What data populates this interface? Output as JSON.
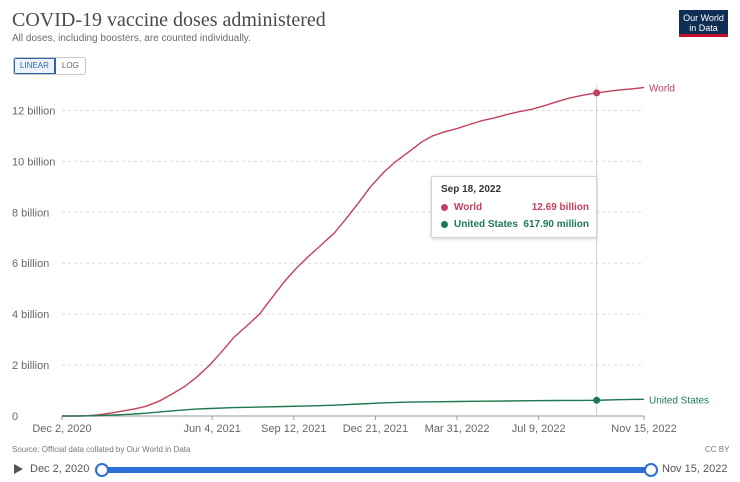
{
  "header": {
    "title": "COVID-19 vaccine doses administered",
    "subtitle": "All doses, including boosters, are counted individually.",
    "logo_line1": "Our World",
    "logo_line2": "in Data"
  },
  "controls": {
    "scale_options": [
      "LINEAR",
      "LOG"
    ],
    "selected": "LINEAR"
  },
  "footer": {
    "source": "Source: Official data collated by Our World in Data",
    "license": "CC BY"
  },
  "timeline": {
    "start_label": "Dec 2, 2020",
    "end_label": "Nov 15, 2022"
  },
  "tooltip": {
    "date": "Sep 18, 2022",
    "rows": [
      {
        "name": "World",
        "value": "12.69 billion",
        "color": "#c4415c"
      },
      {
        "name": "United States",
        "value": "617.90 million",
        "color": "#1e7a4e"
      }
    ]
  },
  "chart_data": {
    "type": "line",
    "x_type": "date",
    "x_range": [
      "2020-12-02",
      "2022-11-15"
    ],
    "y_range": [
      0,
      13000000000
    ],
    "hover_date": "2022-09-18",
    "grid": true,
    "legend": "inline-right",
    "y_ticks": [
      {
        "value": 0,
        "label": "0"
      },
      {
        "value": 2000000000,
        "label": "2 billion"
      },
      {
        "value": 4000000000,
        "label": "4 billion"
      },
      {
        "value": 6000000000,
        "label": "6 billion"
      },
      {
        "value": 8000000000,
        "label": "8 billion"
      },
      {
        "value": 10000000000,
        "label": "10 billion"
      },
      {
        "value": 12000000000,
        "label": "12 billion"
      }
    ],
    "x_ticks": [
      {
        "date": "2020-12-02",
        "label": "Dec 2, 2020"
      },
      {
        "date": "2021-06-04",
        "label": "Jun 4, 2021"
      },
      {
        "date": "2021-09-12",
        "label": "Sep 12, 2021"
      },
      {
        "date": "2021-12-21",
        "label": "Dec 21, 2021"
      },
      {
        "date": "2022-03-31",
        "label": "Mar 31, 2022"
      },
      {
        "date": "2022-07-09",
        "label": "Jul 9, 2022"
      },
      {
        "date": "2022-11-15",
        "label": "Nov 15, 2022"
      }
    ],
    "series": [
      {
        "name": "World",
        "color": "#c4415c",
        "points": [
          [
            "2020-12-02",
            0
          ],
          [
            "2020-12-20",
            1000000
          ],
          [
            "2021-01-01",
            10000000
          ],
          [
            "2021-01-15",
            40000000
          ],
          [
            "2021-02-01",
            120000000
          ],
          [
            "2021-02-15",
            200000000
          ],
          [
            "2021-03-01",
            280000000
          ],
          [
            "2021-03-15",
            380000000
          ],
          [
            "2021-04-01",
            600000000
          ],
          [
            "2021-04-15",
            850000000
          ],
          [
            "2021-05-01",
            1150000000
          ],
          [
            "2021-05-15",
            1500000000
          ],
          [
            "2021-06-01",
            2000000000
          ],
          [
            "2021-06-15",
            2500000000
          ],
          [
            "2021-07-01",
            3100000000
          ],
          [
            "2021-07-15",
            3500000000
          ],
          [
            "2021-08-01",
            4000000000
          ],
          [
            "2021-08-15",
            4600000000
          ],
          [
            "2021-09-01",
            5300000000
          ],
          [
            "2021-09-15",
            5800000000
          ],
          [
            "2021-10-01",
            6300000000
          ],
          [
            "2021-10-15",
            6700000000
          ],
          [
            "2021-11-01",
            7200000000
          ],
          [
            "2021-11-15",
            7750000000
          ],
          [
            "2021-12-01",
            8400000000
          ],
          [
            "2021-12-15",
            9000000000
          ],
          [
            "2022-01-01",
            9600000000
          ],
          [
            "2022-01-15",
            10000000000
          ],
          [
            "2022-02-01",
            10400000000
          ],
          [
            "2022-02-15",
            10750000000
          ],
          [
            "2022-03-01",
            11000000000
          ],
          [
            "2022-03-15",
            11150000000
          ],
          [
            "2022-04-01",
            11300000000
          ],
          [
            "2022-04-15",
            11450000000
          ],
          [
            "2022-05-01",
            11600000000
          ],
          [
            "2022-05-15",
            11700000000
          ],
          [
            "2022-06-01",
            11850000000
          ],
          [
            "2022-06-15",
            11950000000
          ],
          [
            "2022-07-01",
            12050000000
          ],
          [
            "2022-07-15",
            12180000000
          ],
          [
            "2022-08-01",
            12350000000
          ],
          [
            "2022-08-15",
            12480000000
          ],
          [
            "2022-09-01",
            12600000000
          ],
          [
            "2022-09-18",
            12690000000
          ],
          [
            "2022-10-01",
            12750000000
          ],
          [
            "2022-10-15",
            12800000000
          ],
          [
            "2022-11-01",
            12850000000
          ],
          [
            "2022-11-15",
            12900000000
          ]
        ]
      },
      {
        "name": "United States",
        "color": "#1e7a4e",
        "points": [
          [
            "2020-12-02",
            0
          ],
          [
            "2020-12-20",
            1000000
          ],
          [
            "2021-01-01",
            4000000
          ],
          [
            "2021-01-15",
            12000000
          ],
          [
            "2021-02-01",
            35000000
          ],
          [
            "2021-02-15",
            55000000
          ],
          [
            "2021-03-01",
            80000000
          ],
          [
            "2021-03-15",
            110000000
          ],
          [
            "2021-04-01",
            160000000
          ],
          [
            "2021-04-15",
            200000000
          ],
          [
            "2021-05-01",
            240000000
          ],
          [
            "2021-05-15",
            270000000
          ],
          [
            "2021-06-01",
            295000000
          ],
          [
            "2021-07-01",
            330000000
          ],
          [
            "2021-08-01",
            350000000
          ],
          [
            "2021-09-01",
            375000000
          ],
          [
            "2021-10-01",
            395000000
          ],
          [
            "2021-11-01",
            425000000
          ],
          [
            "2021-12-01",
            470000000
          ],
          [
            "2022-01-01",
            520000000
          ],
          [
            "2022-02-01",
            545000000
          ],
          [
            "2022-03-01",
            558000000
          ],
          [
            "2022-04-01",
            570000000
          ],
          [
            "2022-05-01",
            580000000
          ],
          [
            "2022-06-01",
            590000000
          ],
          [
            "2022-07-01",
            600000000
          ],
          [
            "2022-08-01",
            607000000
          ],
          [
            "2022-09-01",
            612000000
          ],
          [
            "2022-09-18",
            617900000
          ],
          [
            "2022-10-01",
            630000000
          ],
          [
            "2022-10-15",
            640000000
          ],
          [
            "2022-11-01",
            650000000
          ],
          [
            "2022-11-15",
            655000000
          ]
        ]
      }
    ]
  }
}
